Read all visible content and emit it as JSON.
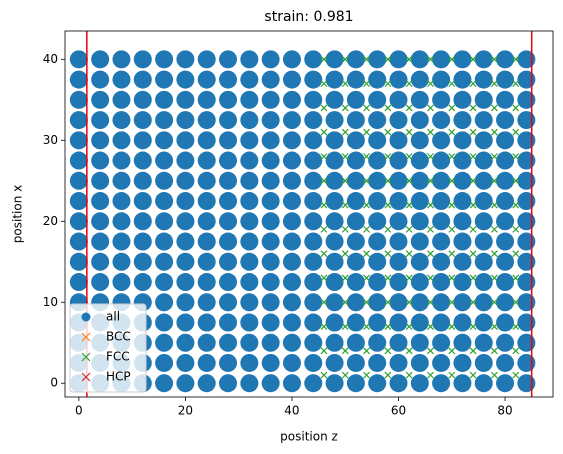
{
  "chart_data": {
    "type": "scatter",
    "title": "strain: 0.981",
    "x_label": "position z",
    "y_label": "position x",
    "xlim": [
      -2.6,
      89
    ],
    "ylim": [
      -1.7,
      43.5
    ],
    "xticks": [
      0,
      20,
      40,
      60,
      80
    ],
    "yticks": [
      0,
      10,
      20,
      30,
      40
    ],
    "grid": false,
    "legend": "lower left",
    "vlines": [
      1.5,
      85
    ],
    "vline_color": "#e8000b",
    "series": [
      {
        "name": "all",
        "color": "#1f77b4",
        "marker": "o",
        "x": [
          0,
          4,
          8,
          12,
          16,
          20,
          24,
          28,
          32,
          36,
          40,
          44,
          48,
          52,
          56,
          60,
          64,
          68,
          72,
          76,
          80,
          84,
          0,
          4,
          8,
          12,
          16,
          20,
          24,
          28,
          32,
          36,
          40,
          44,
          48,
          52,
          56,
          60,
          64,
          68,
          72,
          76,
          80,
          84,
          0,
          4,
          8,
          12,
          16,
          20,
          24,
          28,
          32,
          36,
          40,
          44,
          48,
          52,
          56,
          60,
          64,
          68,
          72,
          76,
          80,
          84,
          0,
          4,
          8,
          12,
          16,
          20,
          24,
          28,
          32,
          36,
          40,
          44,
          48,
          52,
          56,
          60,
          64,
          68,
          72,
          76,
          80,
          84,
          0,
          4,
          8,
          12,
          16,
          20,
          24,
          28,
          32,
          36,
          40,
          44,
          48,
          52,
          56,
          60,
          64,
          68,
          72,
          76,
          80,
          84,
          0,
          4,
          8,
          12,
          16,
          20,
          24,
          28,
          32,
          36,
          40,
          44,
          48,
          52,
          56,
          60,
          64,
          68,
          72,
          76,
          80,
          84,
          0,
          4,
          8,
          12,
          16,
          20,
          24,
          28,
          32,
          36,
          40,
          44,
          48,
          52,
          56,
          60,
          64,
          68,
          72,
          76,
          80,
          84,
          0,
          4,
          8,
          12,
          16,
          20,
          24,
          28,
          32,
          36,
          40,
          44,
          48,
          52,
          56,
          60,
          64,
          68,
          72,
          76,
          80,
          84,
          0,
          4,
          8,
          12,
          16,
          20,
          24,
          28,
          32,
          36,
          40,
          44,
          48,
          52,
          56,
          60,
          64,
          68,
          72,
          76,
          80,
          84,
          0,
          4,
          8,
          12,
          16,
          20,
          24,
          28,
          32,
          36,
          40,
          44,
          48,
          52,
          56,
          60,
          64,
          68,
          72,
          76,
          80,
          84,
          0,
          4,
          8,
          12,
          16,
          20,
          24,
          28,
          32,
          36,
          40,
          44,
          48,
          52,
          56,
          60,
          64,
          68,
          72,
          76,
          80,
          84,
          0,
          4,
          8,
          12,
          16,
          20,
          24,
          28,
          32,
          36,
          40,
          44,
          48,
          52,
          56,
          60,
          64,
          68,
          72,
          76,
          80,
          84,
          0,
          4,
          8,
          12,
          16,
          20,
          24,
          28,
          32,
          36,
          40,
          44,
          48,
          52,
          56,
          60,
          64,
          68,
          72,
          76,
          80,
          84,
          0,
          4,
          8,
          12,
          16,
          20,
          24,
          28,
          32,
          36,
          40,
          44,
          48,
          52,
          56,
          60,
          64,
          68,
          72,
          76,
          80,
          84,
          0,
          4,
          8,
          12,
          16,
          20,
          24,
          28,
          32,
          36,
          40,
          44,
          48,
          52,
          56,
          60,
          64,
          68,
          72,
          76,
          80,
          84,
          0,
          4,
          8,
          12,
          16,
          20,
          24,
          28,
          32,
          36,
          40,
          44,
          48,
          52,
          56,
          60,
          64,
          68,
          72,
          76,
          80,
          84,
          0,
          4,
          8,
          12,
          16,
          20,
          24,
          28,
          32,
          36,
          40,
          44,
          48,
          52,
          56,
          60,
          64,
          68,
          72,
          76,
          80,
          84
        ],
        "y": [
          0,
          0,
          0,
          0,
          0,
          0,
          0,
          0,
          0,
          0,
          0,
          0,
          0,
          0,
          0,
          0,
          0,
          0,
          0,
          0,
          0,
          0,
          2.5,
          2.5,
          2.5,
          2.5,
          2.5,
          2.5,
          2.5,
          2.5,
          2.5,
          2.5,
          2.5,
          2.5,
          2.5,
          2.5,
          2.5,
          2.5,
          2.5,
          2.5,
          2.5,
          2.5,
          2.5,
          2.5,
          5,
          5,
          5,
          5,
          5,
          5,
          5,
          5,
          5,
          5,
          5,
          5,
          5,
          5,
          5,
          5,
          5,
          5,
          5,
          5,
          5,
          5,
          7.5,
          7.5,
          7.5,
          7.5,
          7.5,
          7.5,
          7.5,
          7.5,
          7.5,
          7.5,
          7.5,
          7.5,
          7.5,
          7.5,
          7.5,
          7.5,
          7.5,
          7.5,
          7.5,
          7.5,
          7.5,
          7.5,
          10,
          10,
          10,
          10,
          10,
          10,
          10,
          10,
          10,
          10,
          10,
          10,
          10,
          10,
          10,
          10,
          10,
          10,
          10,
          10,
          10,
          10,
          12.5,
          12.5,
          12.5,
          12.5,
          12.5,
          12.5,
          12.5,
          12.5,
          12.5,
          12.5,
          12.5,
          12.5,
          12.5,
          12.5,
          12.5,
          12.5,
          12.5,
          12.5,
          12.5,
          12.5,
          12.5,
          12.5,
          15,
          15,
          15,
          15,
          15,
          15,
          15,
          15,
          15,
          15,
          15,
          15,
          15,
          15,
          15,
          15,
          15,
          15,
          15,
          15,
          15,
          15,
          17.5,
          17.5,
          17.5,
          17.5,
          17.5,
          17.5,
          17.5,
          17.5,
          17.5,
          17.5,
          17.5,
          17.5,
          17.5,
          17.5,
          17.5,
          17.5,
          17.5,
          17.5,
          17.5,
          17.5,
          17.5,
          17.5,
          20,
          20,
          20,
          20,
          20,
          20,
          20,
          20,
          20,
          20,
          20,
          20,
          20,
          20,
          20,
          20,
          20,
          20,
          20,
          20,
          20,
          20,
          22.5,
          22.5,
          22.5,
          22.5,
          22.5,
          22.5,
          22.5,
          22.5,
          22.5,
          22.5,
          22.5,
          22.5,
          22.5,
          22.5,
          22.5,
          22.5,
          22.5,
          22.5,
          22.5,
          22.5,
          22.5,
          22.5,
          25,
          25,
          25,
          25,
          25,
          25,
          25,
          25,
          25,
          25,
          25,
          25,
          25,
          25,
          25,
          25,
          25,
          25,
          25,
          25,
          25,
          25,
          27.5,
          27.5,
          27.5,
          27.5,
          27.5,
          27.5,
          27.5,
          27.5,
          27.5,
          27.5,
          27.5,
          27.5,
          27.5,
          27.5,
          27.5,
          27.5,
          27.5,
          27.5,
          27.5,
          27.5,
          27.5,
          27.5,
          30,
          30,
          30,
          30,
          30,
          30,
          30,
          30,
          30,
          30,
          30,
          30,
          30,
          30,
          30,
          30,
          30,
          30,
          30,
          30,
          30,
          30,
          32.5,
          32.5,
          32.5,
          32.5,
          32.5,
          32.5,
          32.5,
          32.5,
          32.5,
          32.5,
          32.5,
          32.5,
          32.5,
          32.5,
          32.5,
          32.5,
          32.5,
          32.5,
          32.5,
          32.5,
          32.5,
          32.5,
          35,
          35,
          35,
          35,
          35,
          35,
          35,
          35,
          35,
          35,
          35,
          35,
          35,
          35,
          35,
          35,
          35,
          35,
          35,
          35,
          35,
          35,
          37.5,
          37.5,
          37.5,
          37.5,
          37.5,
          37.5,
          37.5,
          37.5,
          37.5,
          37.5,
          37.5,
          37.5,
          37.5,
          37.5,
          37.5,
          37.5,
          37.5,
          37.5,
          37.5,
          37.5,
          37.5,
          37.5,
          40,
          40,
          40,
          40,
          40,
          40,
          40,
          40,
          40,
          40,
          40,
          40,
          40,
          40,
          40,
          40,
          40,
          40,
          40,
          40,
          40,
          40
        ]
      },
      {
        "name": "BCC",
        "color": "#ff7f0e",
        "marker": "x",
        "x": [],
        "y": []
      },
      {
        "name": "FCC",
        "color": "#2ca02c",
        "marker": "x",
        "x": [
          46,
          50,
          54,
          58,
          62,
          66,
          70,
          74,
          78,
          82,
          46,
          50,
          54,
          58,
          62,
          66,
          70,
          74,
          78,
          82,
          46,
          50,
          54,
          58,
          62,
          66,
          70,
          74,
          78,
          82,
          46,
          50,
          54,
          58,
          62,
          66,
          70,
          74,
          78,
          82,
          46,
          50,
          54,
          58,
          62,
          66,
          70,
          74,
          78,
          82,
          46,
          50,
          54,
          58,
          62,
          66,
          70,
          74,
          78,
          82,
          46,
          50,
          54,
          58,
          62,
          66,
          70,
          74,
          78,
          82,
          46,
          50,
          54,
          58,
          62,
          66,
          70,
          74,
          78,
          82,
          46,
          50,
          54,
          58,
          62,
          66,
          70,
          74,
          78,
          82,
          46,
          50,
          54,
          58,
          62,
          66,
          70,
          74,
          78,
          82,
          46,
          50,
          54,
          58,
          62,
          66,
          70,
          74,
          78,
          82,
          46,
          50,
          54,
          58,
          62,
          66,
          70,
          74,
          78,
          82,
          46,
          50,
          54,
          58,
          62,
          66,
          70,
          74,
          78,
          82,
          46,
          50,
          54,
          58,
          62,
          66,
          70,
          74,
          78,
          82
        ],
        "y": [
          1,
          1,
          1,
          1,
          1,
          1,
          1,
          1,
          1,
          1,
          4,
          4,
          4,
          4,
          4,
          4,
          4,
          4,
          4,
          4,
          7,
          7,
          7,
          7,
          7,
          7,
          7,
          7,
          7,
          7,
          10,
          10,
          10,
          10,
          10,
          10,
          10,
          10,
          10,
          10,
          13,
          13,
          13,
          13,
          13,
          13,
          13,
          13,
          13,
          13,
          16,
          16,
          16,
          16,
          16,
          16,
          16,
          16,
          16,
          16,
          19,
          19,
          19,
          19,
          19,
          19,
          19,
          19,
          19,
          19,
          22,
          22,
          22,
          22,
          22,
          22,
          22,
          22,
          22,
          22,
          25,
          25,
          25,
          25,
          25,
          25,
          25,
          25,
          25,
          25,
          28,
          28,
          28,
          28,
          28,
          28,
          28,
          28,
          28,
          28,
          31,
          31,
          31,
          31,
          31,
          31,
          31,
          31,
          31,
          31,
          34,
          34,
          34,
          34,
          34,
          34,
          34,
          34,
          34,
          34,
          37,
          37,
          37,
          37,
          37,
          37,
          37,
          37,
          37,
          37,
          40,
          40,
          40,
          40,
          40,
          40,
          40,
          40,
          40,
          40
        ]
      },
      {
        "name": "HCP",
        "color": "#d62728",
        "marker": "x",
        "x": [],
        "y": []
      }
    ]
  }
}
